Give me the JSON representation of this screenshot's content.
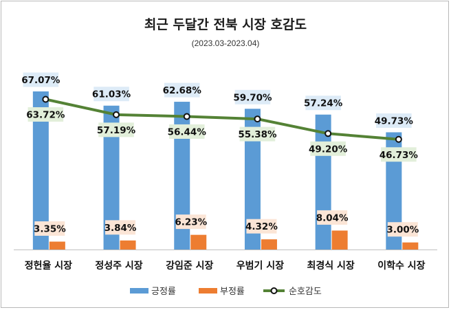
{
  "chart_data": {
    "type": "bar",
    "title": "최근 두달간 전북 시장 호감도",
    "subtitle": "(2023.03-2023.04)",
    "categories": [
      "정헌율 시장",
      "정성주 시장",
      "강임준 시장",
      "우범기 시장",
      "최경식 시장",
      "이학수 시장"
    ],
    "series": [
      {
        "name": "긍정률",
        "type": "bar",
        "color": "#5b9bd5",
        "values": [
          67.07,
          61.03,
          62.68,
          59.7,
          57.24,
          49.73
        ],
        "labels": [
          "67.07%",
          "61.03%",
          "62.68%",
          "59.70%",
          "57.24%",
          "49.73%"
        ],
        "label_bg": "#ddebf7"
      },
      {
        "name": "부정률",
        "type": "bar",
        "color": "#ed7d31",
        "values": [
          3.35,
          3.84,
          6.23,
          4.32,
          8.04,
          3.0
        ],
        "labels": [
          "3.35%",
          "3.84%",
          "6.23%",
          "4.32%",
          "8.04%",
          "3.00%"
        ],
        "label_bg": "#fbe5d6"
      },
      {
        "name": "순호감도",
        "type": "line",
        "color": "#548235",
        "values": [
          63.72,
          57.19,
          56.44,
          55.38,
          49.2,
          46.73
        ],
        "labels": [
          "63.72%",
          "57.19%",
          "56.44%",
          "55.38%",
          "49.20%",
          "46.73%"
        ],
        "label_bg": "#e2efda"
      }
    ],
    "ylim": [
      0,
      70
    ],
    "grid": false,
    "legend": "bottom"
  }
}
